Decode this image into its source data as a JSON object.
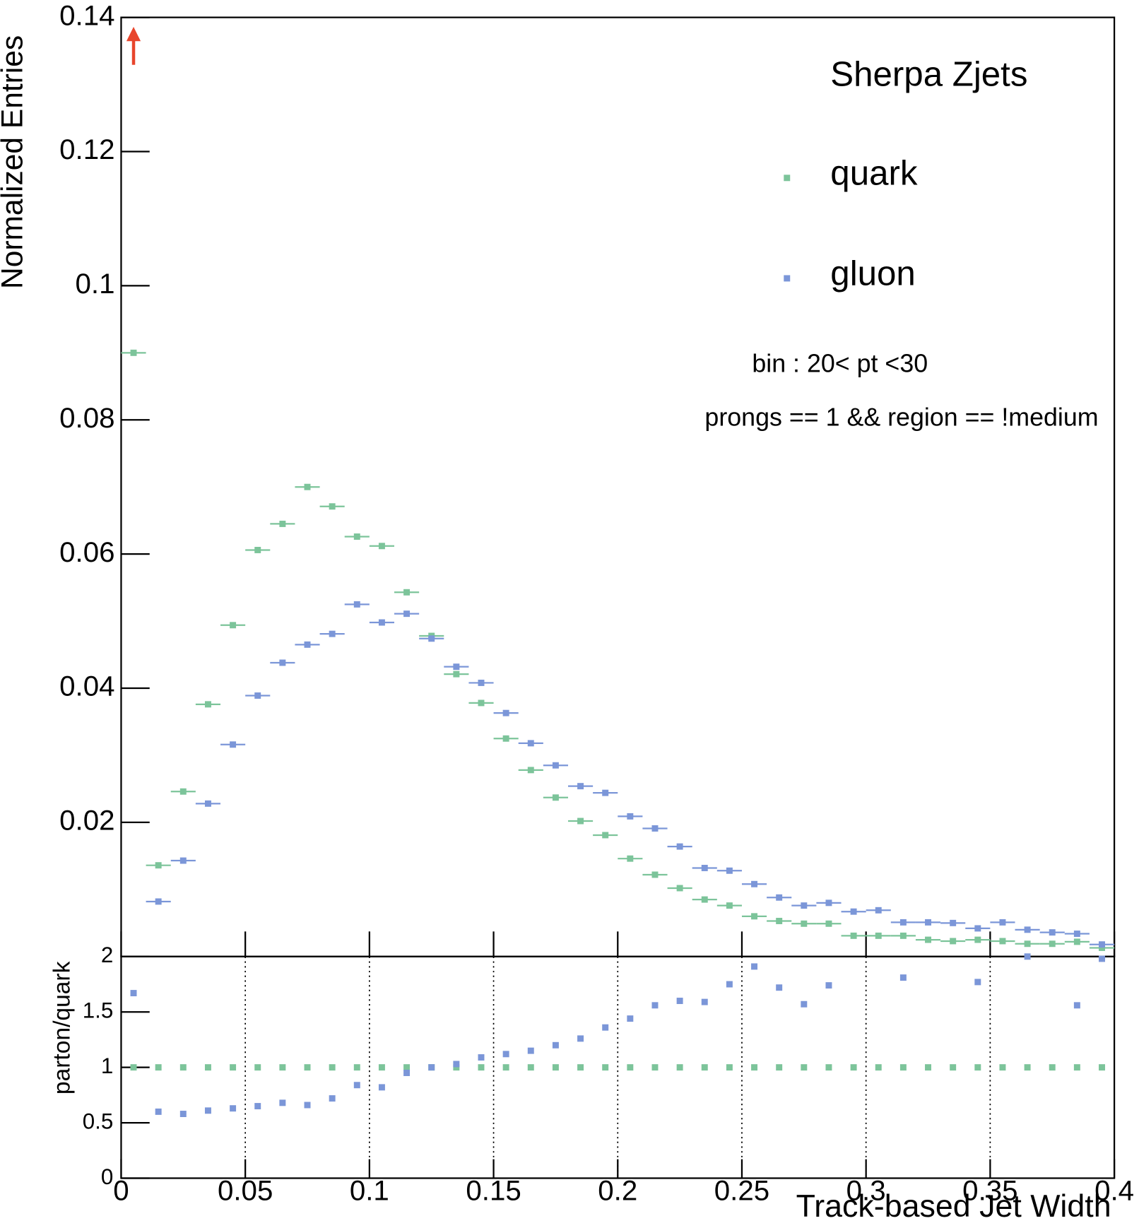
{
  "chart_data": [
    {
      "type": "scatter",
      "ylabel": "Normalized Entries",
      "title": "Sherpa Zjets",
      "annotations": [
        "bin : 20< pt <30",
        "prongs == 1 && region == !medium"
      ],
      "x": [
        0.005,
        0.015,
        0.025,
        0.035,
        0.045,
        0.055,
        0.065,
        0.075,
        0.085,
        0.095,
        0.105,
        0.115,
        0.125,
        0.135,
        0.145,
        0.155,
        0.165,
        0.175,
        0.185,
        0.195,
        0.205,
        0.215,
        0.225,
        0.235,
        0.245,
        0.255,
        0.265,
        0.275,
        0.285,
        0.295,
        0.305,
        0.315,
        0.325,
        0.335,
        0.345,
        0.355,
        0.365,
        0.375,
        0.385,
        0.395
      ],
      "xlim": [
        0,
        0.4
      ],
      "ylim": [
        0,
        0.14
      ],
      "yticks": [
        0.02,
        0.04,
        0.06,
        0.08,
        0.1,
        0.12,
        0.14
      ],
      "series": [
        {
          "name": "quark",
          "color": "#7cc49a",
          "values": [
            0.09,
            0.0136,
            0.0246,
            0.0376,
            0.0494,
            0.0606,
            0.0645,
            0.07,
            0.0671,
            0.0626,
            0.0612,
            0.0543,
            0.0478,
            0.0421,
            0.0378,
            0.0325,
            0.0278,
            0.0237,
            0.0202,
            0.0181,
            0.0146,
            0.0122,
            0.0102,
            0.0085,
            0.0076,
            0.006,
            0.0053,
            0.0049,
            0.0049,
            0.0031,
            0.0031,
            0.0031,
            0.0025,
            0.0023,
            0.0025,
            0.0023,
            0.0019,
            0.0019,
            0.0022,
            0.0013
          ]
        },
        {
          "name": "gluon",
          "color": "#7b96d8",
          "values": [
            0.15,
            0.0082,
            0.0143,
            0.0228,
            0.0316,
            0.0389,
            0.0438,
            0.0465,
            0.0481,
            0.0525,
            0.0498,
            0.0511,
            0.0474,
            0.0432,
            0.0408,
            0.0363,
            0.0318,
            0.0285,
            0.0254,
            0.0244,
            0.0209,
            0.0191,
            0.0164,
            0.0132,
            0.0128,
            0.0108,
            0.0088,
            0.0076,
            0.008,
            0.0067,
            0.0069,
            0.0051,
            0.0051,
            0.005,
            0.0042,
            0.0051,
            0.004,
            0.0036,
            0.0034,
            0.0018
          ]
        }
      ]
    },
    {
      "type": "scatter",
      "ylabel": "parton/quark",
      "xlabel": "Track-based Jet Width",
      "x": [
        0.005,
        0.015,
        0.025,
        0.035,
        0.045,
        0.055,
        0.065,
        0.075,
        0.085,
        0.095,
        0.105,
        0.115,
        0.125,
        0.135,
        0.145,
        0.155,
        0.165,
        0.175,
        0.185,
        0.195,
        0.205,
        0.215,
        0.225,
        0.235,
        0.245,
        0.255,
        0.265,
        0.275,
        0.285,
        0.295,
        0.305,
        0.315,
        0.325,
        0.335,
        0.345,
        0.355,
        0.365,
        0.375,
        0.385,
        0.395
      ],
      "xlim": [
        0,
        0.4
      ],
      "ylim": [
        0,
        2
      ],
      "xticks": [
        0,
        0.05,
        0.1,
        0.15,
        0.2,
        0.25,
        0.3,
        0.35,
        0.4
      ],
      "yticks": [
        0,
        0.5,
        1,
        1.5,
        2
      ],
      "xgrid": true,
      "series": [
        {
          "name": "quark",
          "color": "#7cc49a",
          "values": [
            1,
            1,
            1,
            1,
            1,
            1,
            1,
            1,
            1,
            1,
            1,
            1,
            1,
            1,
            1,
            1,
            1,
            1,
            1,
            1,
            1,
            1,
            1,
            1,
            1,
            1,
            1,
            1,
            1,
            1,
            1,
            1,
            1,
            1,
            1,
            1,
            1,
            1,
            1,
            1
          ]
        },
        {
          "name": "gluon",
          "color": "#7b96d8",
          "values": [
            1.67,
            0.6,
            0.58,
            0.61,
            0.63,
            0.65,
            0.68,
            0.66,
            0.72,
            0.84,
            0.82,
            0.95,
            1.0,
            1.03,
            1.09,
            1.12,
            1.15,
            1.2,
            1.26,
            1.36,
            1.44,
            1.56,
            1.6,
            1.59,
            1.75,
            1.91,
            1.72,
            1.57,
            1.74,
            null,
            null,
            1.81,
            null,
            null,
            1.77,
            null,
            2.0,
            null,
            1.56,
            1.98
          ]
        }
      ]
    }
  ]
}
